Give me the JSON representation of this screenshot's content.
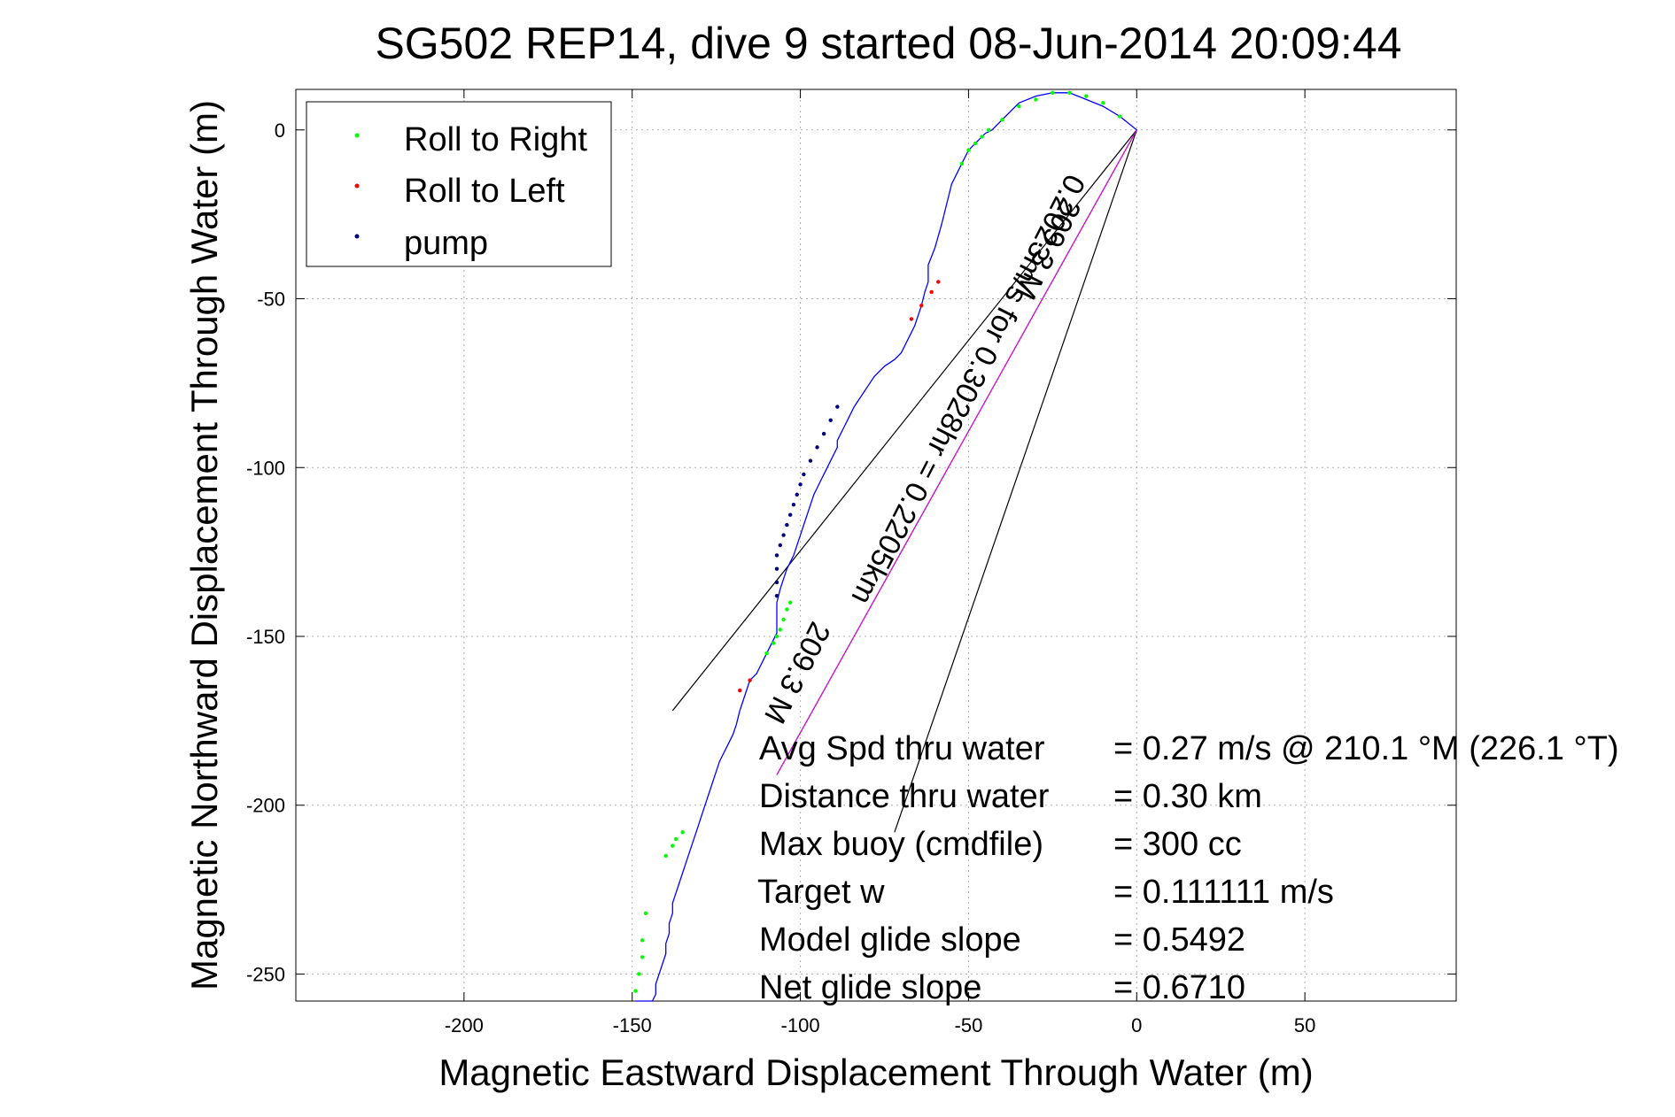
{
  "chart_data": {
    "type": "line",
    "title": "SG502 REP14, dive 9 started 08-Jun-2014 20:09:44",
    "xlabel": "Magnetic Eastward Displacement Through Water (m)",
    "ylabel": "Magnetic Northward Displacement Through Water (m)",
    "xlim": [
      -250,
      95
    ],
    "ylim": [
      -258,
      12
    ],
    "xticks": [
      -200,
      -150,
      -100,
      -50,
      0,
      50
    ],
    "yticks": [
      0,
      -50,
      -100,
      -150,
      -200,
      -250
    ],
    "grid": true,
    "legend_position": "top-left",
    "legend": [
      {
        "label": "Roll to Right",
        "color": "#00ff00"
      },
      {
        "label": "Roll to Left",
        "color": "#ff0000"
      },
      {
        "label": "pump",
        "color": "#000080"
      }
    ],
    "track_color": "#0000ff",
    "track": {
      "x": [
        0,
        -5,
        -10,
        -15,
        -20,
        -25,
        -30,
        -35,
        -40,
        -43,
        -45,
        -46,
        -48,
        -50,
        -52,
        -55,
        -56,
        -58,
        -60,
        -62,
        -62,
        -63,
        -64,
        -65,
        -66,
        -67,
        -68,
        -69,
        -70,
        -72,
        -75,
        -78,
        -80,
        -82,
        -84,
        -85,
        -86,
        -87,
        -88,
        -89,
        -89,
        -90,
        -91,
        -92,
        -93,
        -94,
        -95,
        -96,
        -97,
        -98,
        -99,
        -100,
        -101,
        -102,
        -103,
        -104,
        -105,
        -106,
        -107,
        -107,
        -107,
        -107,
        -108,
        -109,
        -110,
        -111,
        -112,
        -113,
        -115,
        -116,
        -117,
        -118,
        -119,
        -120,
        -121,
        -122,
        -123,
        -124,
        -125,
        -126,
        -127,
        -128,
        -129,
        -130,
        -131,
        -132,
        -133,
        -134,
        -135,
        -136,
        -137,
        -138,
        -138,
        -139,
        -139,
        -140,
        -140,
        -141,
        -142,
        -143,
        -143,
        -144,
        -144,
        -145,
        -146,
        -146,
        -146,
        -147,
        -147,
        -147,
        -147,
        -148,
        -148,
        -148,
        -149
      ],
      "y": [
        0,
        4,
        7,
        9,
        11,
        11,
        10,
        8,
        3,
        0,
        -1,
        -2,
        -4,
        -6,
        -10,
        -16,
        -20,
        -28,
        -35,
        -40,
        -45,
        -48,
        -52,
        -55,
        -58,
        -60,
        -62,
        -64,
        -66,
        -68,
        -70,
        -73,
        -76,
        -79,
        -82,
        -84,
        -86,
        -88,
        -90,
        -92,
        -94,
        -96,
        -98,
        -100,
        -102,
        -104,
        -106,
        -108,
        -111,
        -114,
        -117,
        -120,
        -123,
        -126,
        -128,
        -130,
        -133,
        -136,
        -140,
        -143,
        -146,
        -149,
        -151,
        -153,
        -155,
        -157,
        -159,
        -161,
        -163,
        -166,
        -169,
        -172,
        -176,
        -179,
        -181,
        -183,
        -185,
        -187,
        -190,
        -193,
        -196,
        -199,
        -202,
        -205,
        -208,
        -211,
        -214,
        -217,
        -220,
        -223,
        -226,
        -229,
        -232,
        -235,
        -238,
        -241,
        -244,
        -247,
        -250,
        -253,
        -256,
        -258,
        -258,
        -258,
        -258,
        -258,
        -258,
        -258,
        -258,
        -258,
        -258,
        -258,
        -258,
        -258,
        -258
      ]
    },
    "roll_right_points": {
      "x": [
        -149,
        -148,
        -147,
        -147,
        -146,
        -140,
        -138,
        -137,
        -135,
        -110,
        -108,
        -107,
        -106,
        -105,
        -104,
        -103,
        -52,
        -50,
        -48,
        -46,
        -44,
        -40,
        -35,
        -30,
        -25,
        -20,
        -15,
        -10,
        -5
      ],
      "y": [
        -255,
        -250,
        -245,
        -240,
        -232,
        -215,
        -212,
        -210,
        -208,
        -155,
        -152,
        -150,
        -148,
        -145,
        -142,
        -140,
        -10,
        -6,
        -4,
        -2,
        0,
        3,
        7,
        9,
        11,
        11,
        10,
        8,
        4
      ]
    },
    "roll_left_points": {
      "x": [
        -59,
        -61,
        -64,
        -67,
        -115,
        -118
      ],
      "y": [
        -45,
        -48,
        -52,
        -56,
        -163,
        -166
      ]
    },
    "pump_points": {
      "x": [
        -89,
        -91,
        -93,
        -95,
        -97,
        -99,
        -100,
        -101,
        -102,
        -103,
        -104,
        -105,
        -106,
        -107,
        -107,
        -107,
        -107
      ],
      "y": [
        -82,
        -86,
        -90,
        -94,
        -98,
        -102,
        -105,
        -108,
        -111,
        -114,
        -117,
        -120,
        -123,
        -126,
        -130,
        -134,
        -138
      ]
    },
    "heading_lines": [
      {
        "from": [
          0,
          0
        ],
        "to": [
          -138,
          -172
        ]
      },
      {
        "from": [
          0,
          0
        ],
        "to": [
          -107,
          -191
        ]
      },
      {
        "from": [
          0,
          0
        ],
        "to": [
          -72,
          -208
        ]
      }
    ],
    "rotated_labels": [
      "0.2023m/s for 0.3028hr = 0.2205km",
      "209.3 M",
      "209.3 M"
    ],
    "stats_labels": [
      "Avg Spd thru water",
      "Distance thru water",
      "Max buoy (cmdfile)",
      "Target w",
      "Model glide slope",
      "Net glide slope"
    ],
    "stats_values": [
      "=  0.27 m/s @ 210.1 °M (226.1 °T)",
      "=  0.30 km",
      "= 300 cc",
      "= 0.111111 m/s",
      "= 0.5492",
      "= 0.6710"
    ]
  }
}
